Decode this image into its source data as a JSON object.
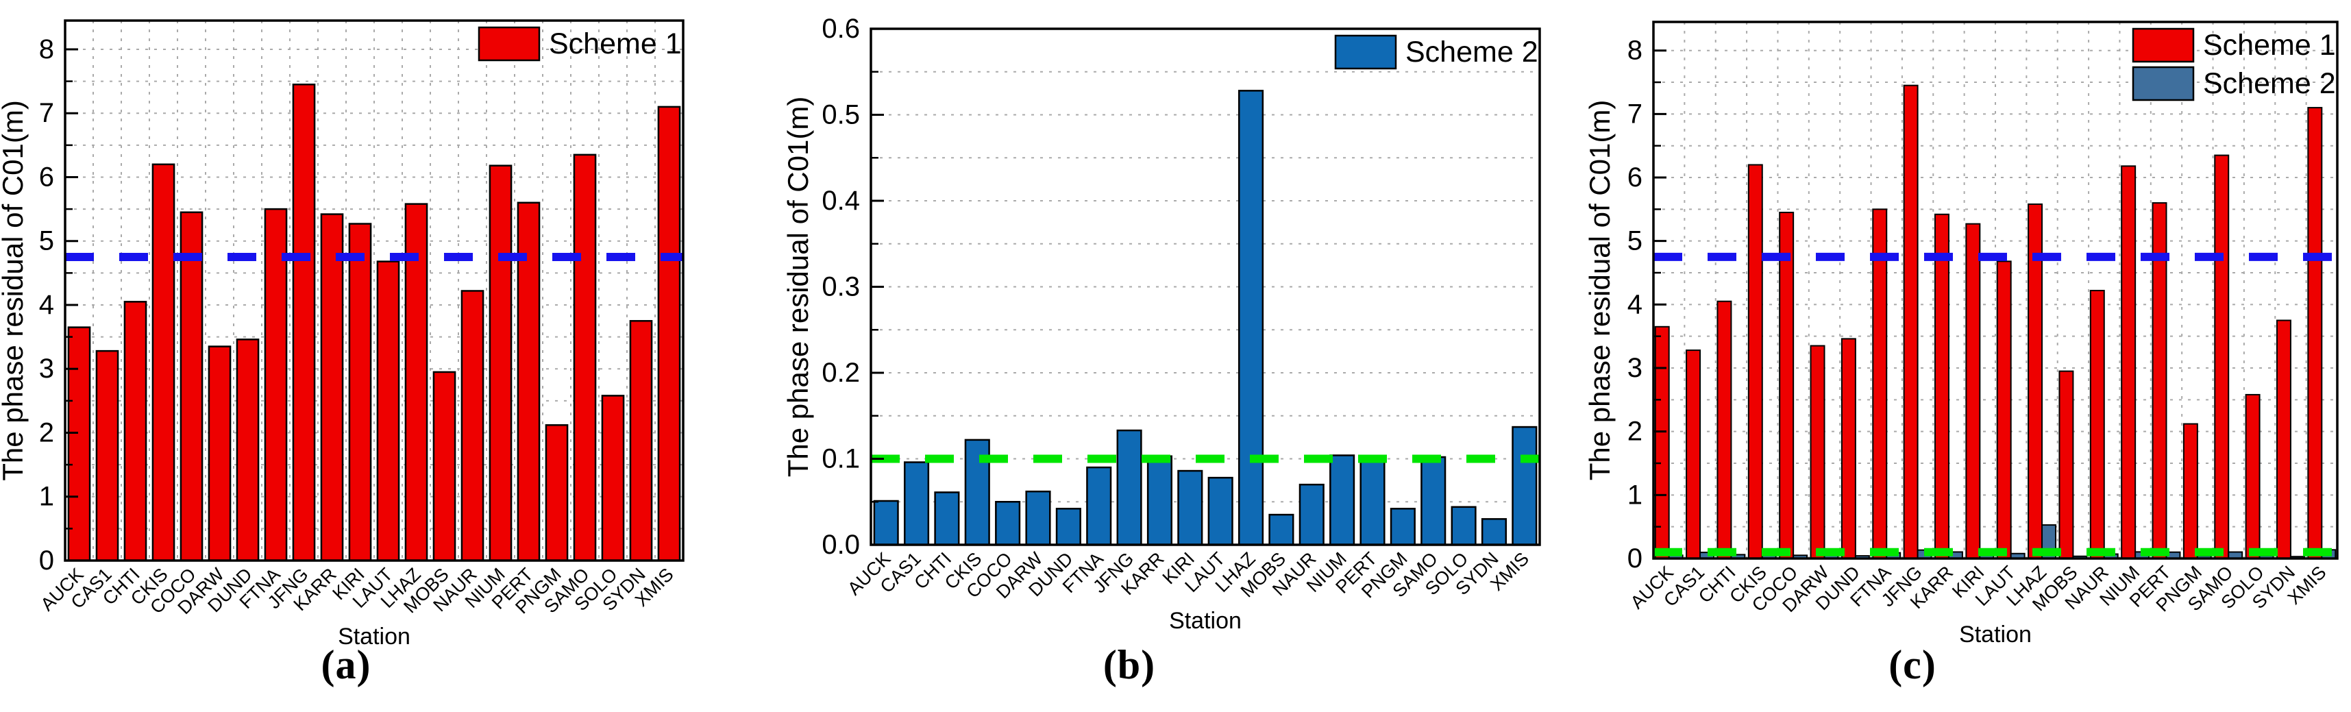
{
  "figure": {
    "panels": [
      {
        "caption": "(a)"
      },
      {
        "caption": "(b)"
      },
      {
        "caption": "(c)"
      }
    ]
  },
  "colors": {
    "scheme1_red": "#EE0000",
    "scheme2_blue_b": "#0F6AB4",
    "scheme2_blue_c": "#3F6F9D",
    "blue_ref_line": "#1712EE",
    "green_ref_line": "#00E600",
    "grid": "#AAAAAA",
    "bar_edge": "#000000"
  },
  "chart_data": [
    {
      "type": "bar",
      "panel": "a",
      "ylabel": "The phase residual of C01(m)",
      "xlabel": "Station",
      "categories": [
        "AUCK",
        "CAS1",
        "CHTI",
        "CKIS",
        "COCO",
        "DARW",
        "DUND",
        "FTNA",
        "JFNG",
        "KARR",
        "KIRI",
        "LAUT",
        "LHAZ",
        "MOBS",
        "NAUR",
        "NIUM",
        "PERT",
        "PNGM",
        "SAMO",
        "SOLO",
        "SYDN",
        "XMIS"
      ],
      "series": [
        {
          "name": "Scheme 1",
          "color": "#EE0000",
          "values": [
            3.65,
            3.28,
            4.05,
            6.2,
            5.45,
            3.35,
            3.46,
            5.5,
            7.45,
            5.42,
            5.27,
            4.68,
            5.58,
            2.95,
            4.22,
            6.18,
            5.6,
            2.12,
            6.35,
            2.58,
            3.75,
            7.1
          ]
        }
      ],
      "ylim": [
        0,
        8.45
      ],
      "ytick_step": 1,
      "yminor_step": 0.5,
      "ytick_decimals": 0,
      "grid": "dotted",
      "vertical_grid": true,
      "legend_position": "top-right",
      "ref_lines": [
        {
          "value": 4.75,
          "color": "#1712EE",
          "style": "dashed",
          "name": "scheme1-mean-line"
        }
      ]
    },
    {
      "type": "bar",
      "panel": "b",
      "ylabel": "The phase residual of C01(m)",
      "xlabel": "Station",
      "categories": [
        "AUCK",
        "CAS1",
        "CHTI",
        "CKIS",
        "COCO",
        "DARW",
        "DUND",
        "FTNA",
        "JFNG",
        "KARR",
        "KIRI",
        "LAUT",
        "LHAZ",
        "MOBS",
        "NAUR",
        "NIUM",
        "PERT",
        "PNGM",
        "SAMO",
        "SOLO",
        "SYDN",
        "XMIS"
      ],
      "series": [
        {
          "name": "Scheme 2",
          "color": "#0F6AB4",
          "values": [
            0.051,
            0.096,
            0.061,
            0.122,
            0.05,
            0.062,
            0.042,
            0.09,
            0.133,
            0.103,
            0.086,
            0.078,
            0.528,
            0.035,
            0.07,
            0.104,
            0.1,
            0.042,
            0.102,
            0.044,
            0.03,
            0.137
          ]
        }
      ],
      "ylim": [
        0,
        0.6
      ],
      "ytick_step": 0.1,
      "yminor_step": 0.05,
      "ytick_decimals": 1,
      "grid": "dotted",
      "vertical_grid": false,
      "legend_position": "top-right",
      "ref_lines": [
        {
          "value": 0.1,
          "color": "#00E600",
          "style": "dashed",
          "name": "scheme2-mean-line"
        }
      ]
    },
    {
      "type": "bar",
      "panel": "c",
      "ylabel": "The phase residual of C01(m)",
      "xlabel": "Station",
      "categories": [
        "AUCK",
        "CAS1",
        "CHTI",
        "CKIS",
        "COCO",
        "DARW",
        "DUND",
        "FTNA",
        "JFNG",
        "KARR",
        "KIRI",
        "LAUT",
        "LHAZ",
        "MOBS",
        "NAUR",
        "NIUM",
        "PERT",
        "PNGM",
        "SAMO",
        "SOLO",
        "SYDN",
        "XMIS"
      ],
      "series": [
        {
          "name": "Scheme 1",
          "color": "#EE0000",
          "values": [
            3.65,
            3.28,
            4.05,
            6.2,
            5.45,
            3.35,
            3.46,
            5.5,
            7.45,
            5.42,
            5.27,
            4.68,
            5.58,
            2.95,
            4.22,
            6.18,
            5.6,
            2.12,
            6.35,
            2.58,
            3.75,
            7.1
          ]
        },
        {
          "name": "Scheme 2",
          "color": "#3F6F9D",
          "values": [
            0.051,
            0.096,
            0.061,
            0.122,
            0.05,
            0.062,
            0.042,
            0.09,
            0.133,
            0.103,
            0.086,
            0.078,
            0.528,
            0.035,
            0.07,
            0.104,
            0.1,
            0.042,
            0.102,
            0.044,
            0.03,
            0.137
          ]
        }
      ],
      "ylim": [
        0,
        8.45
      ],
      "ytick_step": 1,
      "yminor_step": 0.5,
      "ytick_decimals": 0,
      "grid": "dotted",
      "vertical_grid": true,
      "legend_position": "top-right",
      "ref_lines": [
        {
          "value": 4.75,
          "color": "#1712EE",
          "style": "dashed",
          "name": "scheme1-mean-line"
        },
        {
          "value": 0.1,
          "color": "#00E600",
          "style": "dashed",
          "name": "scheme2-mean-line"
        }
      ]
    }
  ]
}
